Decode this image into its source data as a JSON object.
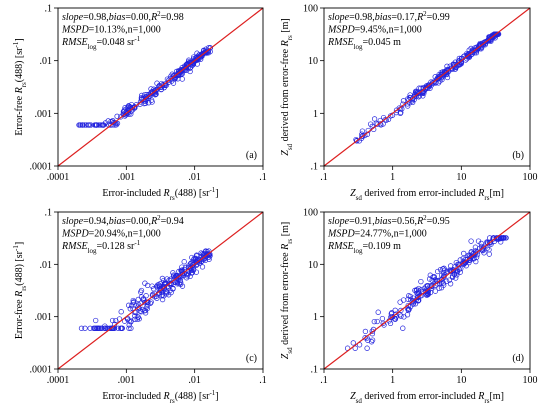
{
  "chart_data": [
    {
      "id": "a",
      "type": "scatter",
      "panel_label": "(a)",
      "xlabel": "Error-included R_rs(488) [sr^-1]",
      "ylabel": "Error-free R_rs(488) [sr^-1]",
      "xscale": "log",
      "yscale": "log",
      "xlim": [
        0.0001,
        0.1
      ],
      "ylim": [
        0.0001,
        0.1
      ],
      "xticks": [
        "0.0001",
        "0.001",
        "0.01",
        "0.1"
      ],
      "xtick_labels": [
        ".0001",
        ".001",
        ".01",
        ".1"
      ],
      "ytick_labels": [
        ".0001",
        ".001",
        ".01",
        ".1"
      ],
      "stats": [
        "slope=0.98,bias=0.00,R2=0.98",
        "MSPD=10.13%,n=1,000",
        "RMSElog=0.048 sr-1"
      ],
      "x_range": [
        0.00015,
        0.017
      ],
      "y_range": [
        0.0006,
        0.018
      ],
      "scatter_spread": 0.18,
      "line": "1:1"
    },
    {
      "id": "b",
      "type": "scatter",
      "panel_label": "(b)",
      "xlabel": "Z_sd derived from error-included R_rs[m]",
      "ylabel": "Z_sd derived from error-free R_rs [m]",
      "xscale": "log",
      "yscale": "log",
      "xlim": [
        0.1,
        100
      ],
      "ylim": [
        0.1,
        100
      ],
      "xtick_labels": [
        ".1",
        "1",
        "10",
        "100"
      ],
      "ytick_labels": [
        ".1",
        "1",
        "10",
        "100"
      ],
      "stats": [
        "slope=0.98,bias=0.17,R2=0.99",
        "MSPD=9.45%,n=1,000",
        "RMSElog=0.045 m"
      ],
      "x_range": [
        0.25,
        35
      ],
      "y_range": [
        0.3,
        32
      ],
      "scatter_spread": 0.13,
      "line": "1:1"
    },
    {
      "id": "c",
      "type": "scatter",
      "panel_label": "(c)",
      "xlabel": "Error-included R_rs(488) [sr^-1]",
      "ylabel": "Error-free R_rs(488) [sr^-1]",
      "xscale": "log",
      "yscale": "log",
      "xlim": [
        0.0001,
        0.1
      ],
      "ylim": [
        0.0001,
        0.1
      ],
      "xtick_labels": [
        ".0001",
        ".001",
        ".01",
        ".1"
      ],
      "ytick_labels": [
        ".0001",
        ".001",
        ".01",
        ".1"
      ],
      "stats": [
        "slope=0.94,bias=0.00,R2=0.94",
        "MSPD=20.94%,n=1,000",
        "RMSElog=0.128 sr-1"
      ],
      "x_range": [
        0.0002,
        0.017
      ],
      "y_range": [
        0.0006,
        0.018
      ],
      "scatter_spread": 0.35,
      "line": "1:1"
    },
    {
      "id": "d",
      "type": "scatter",
      "panel_label": "(d)",
      "xlabel": "Z_sd derived from error-included R_rs[m]",
      "ylabel": "Z_sd derived from error-free R_rs [m]",
      "xscale": "log",
      "yscale": "log",
      "xlim": [
        0.1,
        100
      ],
      "ylim": [
        0.1,
        100
      ],
      "xtick_labels": [
        ".1",
        "1",
        "10",
        "100"
      ],
      "ytick_labels": [
        ".1",
        "1",
        "10",
        "100"
      ],
      "stats": [
        "slope=0.91,bias=0.56,R2=0.95",
        "MSPD=24.77%,n=1,000",
        "RMSElog=0.109 m"
      ],
      "x_range": [
        0.2,
        45
      ],
      "y_range": [
        0.25,
        32
      ],
      "scatter_spread": 0.3,
      "line": "1:1"
    }
  ],
  "style": {
    "point_color": "#2222dd",
    "line_color": "#dd2020",
    "axis_color": "#000000"
  }
}
